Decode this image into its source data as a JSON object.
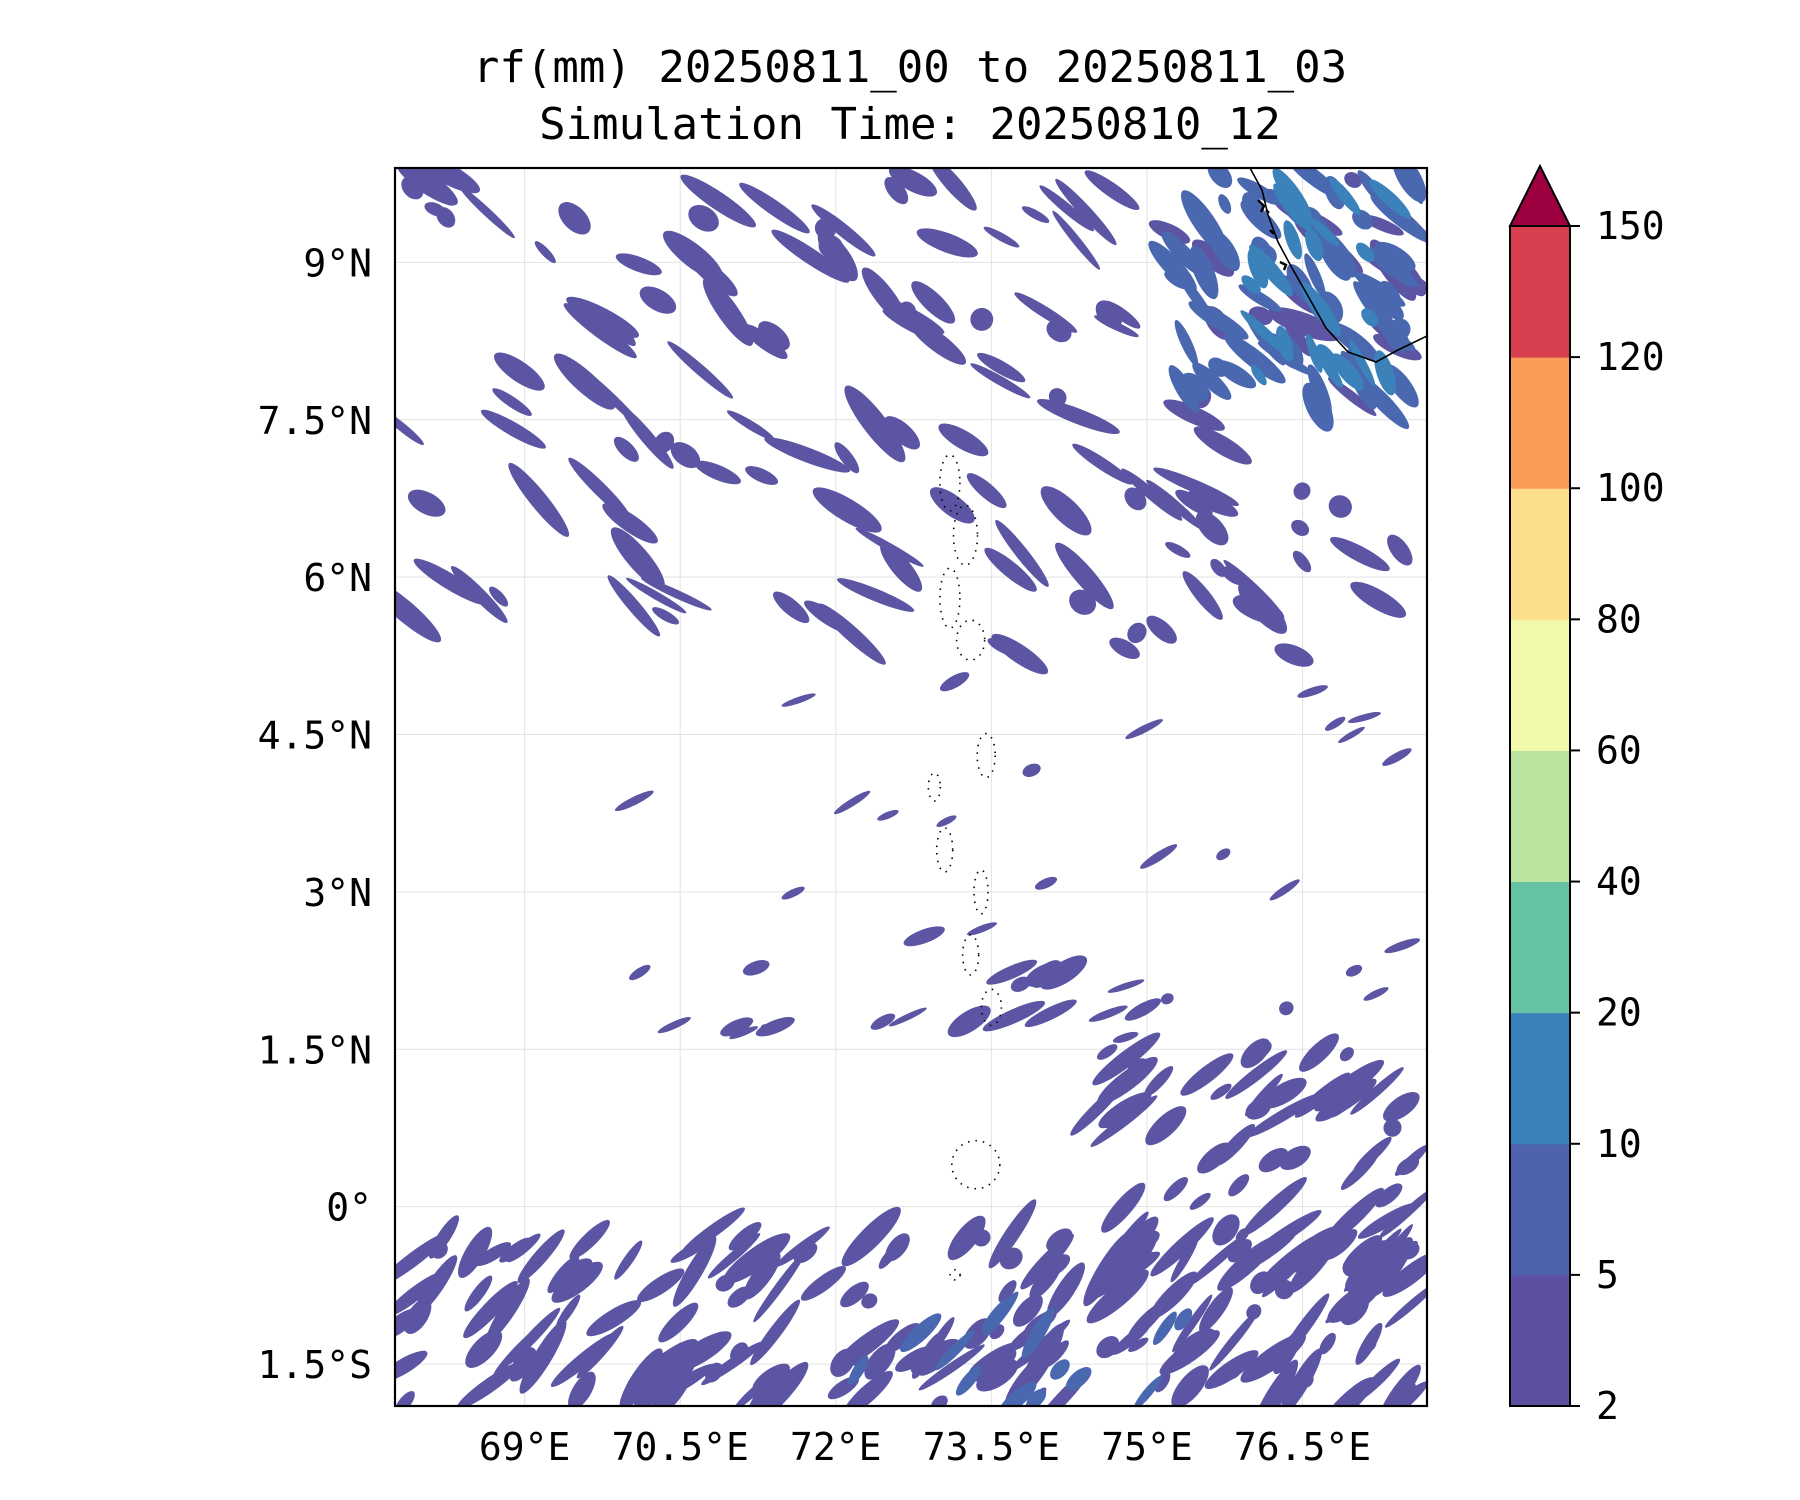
{
  "title": {
    "line1": "rf(mm) 20250811_00 to 20250811_03",
    "line2": "Simulation Time: 20250810_12"
  },
  "map": {
    "lon_range": [
      67.75,
      77.7
    ],
    "lat_range": [
      -1.9,
      9.9
    ],
    "grid": true,
    "lon_ticks": [
      {
        "value": 69.0,
        "label": "69°E"
      },
      {
        "value": 70.5,
        "label": "70.5°E"
      },
      {
        "value": 72.0,
        "label": "72°E"
      },
      {
        "value": 73.5,
        "label": "73.5°E"
      },
      {
        "value": 75.0,
        "label": "75°E"
      },
      {
        "value": 76.5,
        "label": "76.5°E"
      }
    ],
    "lat_ticks": [
      {
        "value": 9.0,
        "label": "9°N"
      },
      {
        "value": 7.5,
        "label": "7.5°N"
      },
      {
        "value": 6.0,
        "label": "6°N"
      },
      {
        "value": 4.5,
        "label": "4.5°N"
      },
      {
        "value": 3.0,
        "label": "3°N"
      },
      {
        "value": 1.5,
        "label": "1.5°N"
      },
      {
        "value": 0.0,
        "label": "0°"
      },
      {
        "value": -1.5,
        "label": "1.5°S"
      }
    ]
  },
  "colorbar": {
    "levels": [
      {
        "label": "2",
        "value": 2
      },
      {
        "label": "5",
        "value": 5
      },
      {
        "label": "10",
        "value": 10
      },
      {
        "label": "20",
        "value": 20
      },
      {
        "label": "40",
        "value": 40
      },
      {
        "label": "60",
        "value": 60
      },
      {
        "label": "80",
        "value": 80
      },
      {
        "label": "100",
        "value": 100
      },
      {
        "label": "120",
        "value": 120
      },
      {
        "label": "150",
        "value": 150
      }
    ],
    "colors": [
      "#5e4fa2",
      "#4f62ae",
      "#3a80b9",
      "#66c2a5",
      "#bde3a0",
      "#f1f8a9",
      "#fddf8b",
      "#fa9c58",
      "#d8404f"
    ],
    "extend_color": "#9e0142",
    "extend": "max"
  },
  "rain_colors": {
    "light": "#5b55a3",
    "medium": "#4a68b0",
    "heavy": "#3b82bb"
  }
}
